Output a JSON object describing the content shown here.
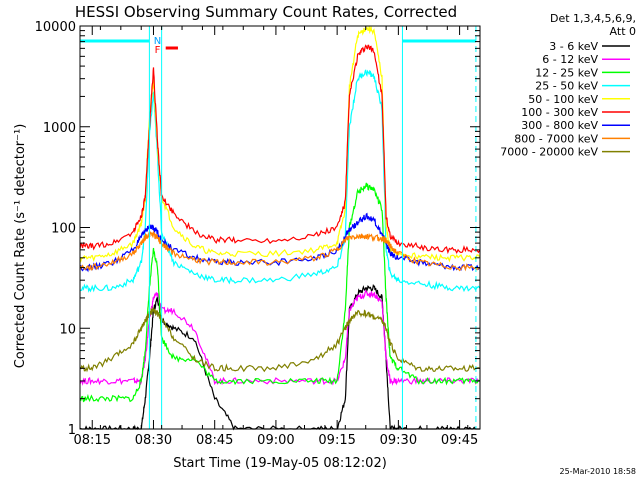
{
  "chart_data": {
    "type": "line",
    "title": "HESSI Observing Summary Count Rates, Corrected",
    "xlabel": "Start Time (19-May-05 08:12:02)",
    "ylabel": "Corrected Count Rate (s⁻¹ detector⁻¹)",
    "yscale": "log",
    "ylim": [
      1,
      10000
    ],
    "xlim": [
      "08:12",
      "09:50"
    ],
    "x_ticks": [
      "08:15",
      "08:30",
      "08:45",
      "09:00",
      "09:15",
      "09:30",
      "09:45"
    ],
    "y_ticks": [
      "1",
      "10",
      "100",
      "1000",
      "10000"
    ],
    "grid": false,
    "legend_position": "right",
    "legend_header": [
      "Det 1,3,4,5,6,9,",
      "Att 0"
    ],
    "flags": [
      {
        "label": "N"
      },
      {
        "label": "F"
      }
    ],
    "x": [
      "08:12",
      "08:15",
      "08:20",
      "08:25",
      "08:27",
      "08:28",
      "08:29",
      "08:30",
      "08:31",
      "08:32",
      "08:35",
      "08:40",
      "08:45",
      "08:50",
      "09:00",
      "09:10",
      "09:15",
      "09:17",
      "09:18",
      "09:20",
      "09:22",
      "09:24",
      "09:26",
      "09:27",
      "09:28",
      "09:30",
      "09:35",
      "09:40",
      "09:45",
      "09:50"
    ],
    "series": [
      {
        "name": "3 - 6 keV",
        "color": "#000000",
        "values": [
          1,
          1,
          1,
          1,
          1,
          2,
          5,
          15,
          20,
          12,
          10,
          8,
          2,
          1,
          1,
          1,
          1,
          2,
          15,
          22,
          25,
          25,
          20,
          5,
          1,
          1,
          1,
          1,
          1,
          1
        ]
      },
      {
        "name": "6 - 12 keV",
        "color": "#ff00ff",
        "values": [
          3,
          3,
          3,
          3,
          3,
          5,
          12,
          20,
          22,
          15,
          15,
          10,
          3,
          3,
          3,
          3,
          3,
          5,
          15,
          20,
          22,
          22,
          18,
          5,
          3,
          3,
          3,
          3,
          3,
          3
        ]
      },
      {
        "name": "12 - 25 keV",
        "color": "#00ff00",
        "values": [
          2,
          2,
          2,
          2,
          3,
          6,
          25,
          60,
          40,
          8,
          5,
          5,
          3,
          3,
          3,
          3,
          3,
          15,
          100,
          220,
          260,
          240,
          150,
          20,
          5,
          4,
          3,
          3,
          3,
          3
        ]
      },
      {
        "name": "25 - 50 keV",
        "color": "#00ffff",
        "values": [
          25,
          25,
          25,
          30,
          45,
          100,
          800,
          2200,
          500,
          90,
          45,
          35,
          30,
          30,
          30,
          35,
          40,
          80,
          1000,
          3000,
          3500,
          3200,
          1500,
          60,
          35,
          30,
          28,
          26,
          25,
          25
        ]
      },
      {
        "name": "50 - 100 keV",
        "color": "#ffff00",
        "values": [
          50,
          50,
          55,
          70,
          110,
          200,
          1200,
          3000,
          600,
          200,
          100,
          65,
          55,
          55,
          55,
          60,
          70,
          150,
          2500,
          8000,
          9500,
          9000,
          3000,
          100,
          60,
          55,
          52,
          50,
          50,
          50
        ]
      },
      {
        "name": "100 - 300 keV",
        "color": "#ff0000",
        "values": [
          65,
          65,
          70,
          90,
          130,
          200,
          1000,
          3800,
          700,
          200,
          140,
          90,
          75,
          75,
          75,
          85,
          100,
          180,
          2000,
          5000,
          6200,
          5800,
          2000,
          130,
          80,
          70,
          65,
          60,
          60,
          60
        ]
      },
      {
        "name": "300 - 800 keV",
        "color": "#0000ff",
        "values": [
          40,
          40,
          45,
          60,
          80,
          95,
          100,
          100,
          90,
          75,
          60,
          50,
          45,
          45,
          45,
          50,
          60,
          80,
          95,
          110,
          130,
          120,
          85,
          70,
          55,
          50,
          45,
          42,
          40,
          40
        ]
      },
      {
        "name": "800 - 7000 keV",
        "color": "#ff8000",
        "values": [
          40,
          40,
          45,
          55,
          70,
          80,
          85,
          85,
          80,
          70,
          55,
          48,
          45,
          45,
          45,
          50,
          60,
          75,
          80,
          82,
          82,
          80,
          78,
          75,
          65,
          55,
          45,
          42,
          40,
          40
        ]
      },
      {
        "name": "7000 - 20000 keV",
        "color": "#808000",
        "values": [
          4,
          4,
          5,
          7,
          10,
          12,
          14,
          15,
          14,
          12,
          8,
          5,
          4,
          4,
          4,
          5,
          7,
          10,
          12,
          14,
          14,
          13,
          12,
          10,
          7,
          5,
          4,
          4,
          4,
          4
        ]
      }
    ]
  },
  "footer": {
    "date": "25-Mar-2010 18:58"
  }
}
